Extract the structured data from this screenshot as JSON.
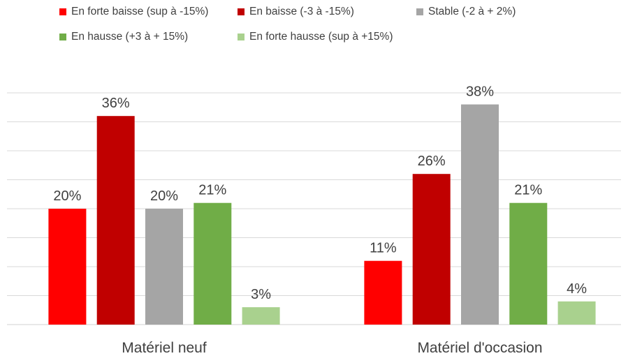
{
  "chart_data": {
    "type": "bar",
    "title": "",
    "xlabel": "",
    "ylabel": "",
    "ylim": [
      0,
      40
    ],
    "grid": true,
    "legend_position": "top",
    "categories": [
      "Matériel neuf",
      "Matériel d'occasion"
    ],
    "series": [
      {
        "name": "En forte baisse (sup à -15%)",
        "color": "#ff0000",
        "values": [
          20,
          11
        ],
        "labels": [
          "20%",
          "11%"
        ]
      },
      {
        "name": "En baisse (-3 à -15%)",
        "color": "#c00000",
        "values": [
          36,
          26
        ],
        "labels": [
          "36%",
          "26%"
        ]
      },
      {
        "name": "Stable (-2 à + 2%)",
        "color": "#a5a5a5",
        "values": [
          20,
          38
        ],
        "labels": [
          "20%",
          "38%"
        ]
      },
      {
        "name": "En hausse (+3 à + 15%)",
        "color": "#70ad47",
        "values": [
          21,
          21
        ],
        "labels": [
          "21%",
          "21%"
        ]
      },
      {
        "name": "En forte hausse (sup à +15%)",
        "color": "#a9d18e",
        "values": [
          3,
          4
        ],
        "labels": [
          "3%",
          "4%"
        ]
      }
    ]
  }
}
